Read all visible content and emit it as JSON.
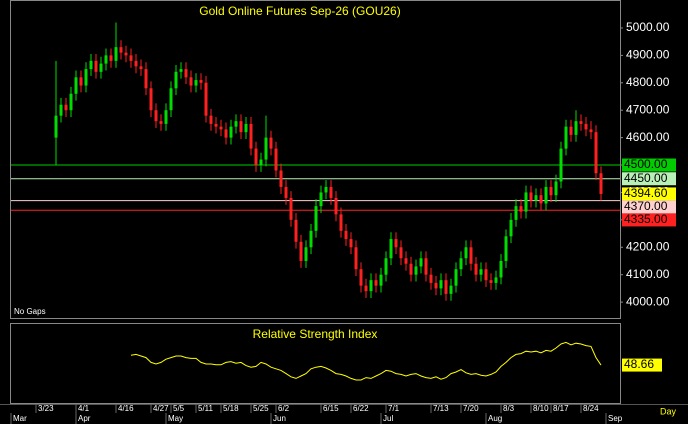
{
  "chart_data": [
    {
      "type": "candlestick",
      "title": "Gold Online Futures Sep-26 (GOU26)",
      "note": "No Gaps",
      "xlabel": "Day",
      "up_color": "#00dd00",
      "down_color": "#ff2020",
      "xlim": [
        -9.2,
        112.8
      ],
      "xticks": [
        {
          "value": -4,
          "label": "3/23"
        },
        {
          "value": 4,
          "label": "4/1"
        },
        {
          "value": 12,
          "label": "4/16"
        },
        {
          "value": 19,
          "label": "4/27"
        },
        {
          "value": 23,
          "label": "5/5"
        },
        {
          "value": 28,
          "label": "5/11"
        },
        {
          "value": 33,
          "label": "5/18"
        },
        {
          "value": 39,
          "label": "5/25"
        },
        {
          "value": 44,
          "label": "6/2"
        },
        {
          "value": 53,
          "label": "6/15"
        },
        {
          "value": 59,
          "label": "6/22"
        },
        {
          "value": 66,
          "label": "7/1"
        },
        {
          "value": 75,
          "label": "7/13"
        },
        {
          "value": 81,
          "label": "7/20"
        },
        {
          "value": 89,
          "label": "8/3"
        },
        {
          "value": 95,
          "label": "8/10"
        },
        {
          "value": 99,
          "label": "8/17"
        },
        {
          "value": 105,
          "label": "8/24"
        }
      ],
      "month_ticks": [
        {
          "value": -9,
          "label": "Mar"
        },
        {
          "value": 4,
          "label": "Apr"
        },
        {
          "value": 22,
          "label": "May"
        },
        {
          "value": 43,
          "label": "Jun"
        },
        {
          "value": 65,
          "label": "Jul"
        },
        {
          "value": 86,
          "label": "Aug"
        },
        {
          "value": 110,
          "label": "Sep"
        }
      ],
      "ylim": [
        3942,
        5102
      ],
      "yticks": [
        {
          "value": 4000,
          "label": "4000.00"
        },
        {
          "value": 4100,
          "label": "4100.00"
        },
        {
          "value": 4200,
          "label": "4200.00"
        },
        {
          "value": 4300,
          "label": "4300.00"
        },
        {
          "value": 4400,
          "label": "4400.00"
        },
        {
          "value": 4500,
          "label": "4500.00"
        },
        {
          "value": 4600,
          "label": "4600.00"
        },
        {
          "value": 4700,
          "label": "4700.00"
        },
        {
          "value": 4800,
          "label": "4800.00"
        },
        {
          "value": 4900,
          "label": "4900.00"
        },
        {
          "value": 5000,
          "label": "5000.00"
        }
      ],
      "levels": [
        {
          "value": 4500,
          "label": "4500.00",
          "color": "#00cc00",
          "text_color": "#000000"
        },
        {
          "value": 4450,
          "label": "4450.00",
          "color": "#b8f0b8",
          "text_color": "#000000"
        },
        {
          "value": 4370,
          "label": "4370.00",
          "color": "#ffd0d0",
          "text_color": "#000000"
        },
        {
          "value": 4335,
          "label": "4335.00",
          "color": "#ff2020",
          "text_color": "#000000"
        }
      ],
      "last_price": {
        "value": 4394.6,
        "label": "4394.60",
        "color": "#ffff00"
      },
      "open": [
        4600,
        4680,
        4720,
        4700,
        4760,
        4820,
        4790,
        4850,
        4880,
        4840,
        4870,
        4900,
        4880,
        4930,
        4910,
        4900,
        4880,
        4860,
        4850,
        4780,
        4700,
        4660,
        4650,
        4700,
        4780,
        4840,
        4850,
        4820,
        4790,
        4810,
        4800,
        4680,
        4650,
        4640,
        4630,
        4600,
        4640,
        4660,
        4620,
        4650,
        4560,
        4500,
        4520,
        4600,
        4560,
        4480,
        4420,
        4380,
        4300,
        4220,
        4150,
        4200,
        4260,
        4350,
        4400,
        4420,
        4380,
        4320,
        4260,
        4230,
        4200,
        4120,
        4060,
        4040,
        4080,
        4060,
        4100,
        4160,
        4230,
        4200,
        4160,
        4140,
        4100,
        4130,
        4160,
        4100,
        4070,
        4050,
        4080,
        4030,
        4060,
        4120,
        4160,
        4200,
        4140,
        4100,
        4120,
        4080,
        4070,
        4090,
        4150,
        4240,
        4300,
        4350,
        4330,
        4400,
        4370,
        4390,
        4360,
        4420,
        4390,
        4440,
        4560,
        4640,
        4610,
        4660,
        4650,
        4630,
        4620,
        4470
      ],
      "high": [
        4880,
        4745,
        4745,
        4785,
        4845,
        4845,
        4875,
        4905,
        4905,
        4895,
        4925,
        4925,
        5020,
        4955,
        4935,
        4925,
        4905,
        4885,
        4875,
        4805,
        4725,
        4685,
        4725,
        4805,
        4865,
        4875,
        4875,
        4845,
        4835,
        4835,
        4825,
        4705,
        4675,
        4665,
        4655,
        4665,
        4685,
        4685,
        4675,
        4675,
        4585,
        4545,
        4680,
        4625,
        4585,
        4505,
        4445,
        4405,
        4325,
        4245,
        4225,
        4285,
        4375,
        4425,
        4445,
        4445,
        4405,
        4345,
        4285,
        4255,
        4225,
        4145,
        4085,
        4105,
        4105,
        4125,
        4185,
        4255,
        4255,
        4225,
        4185,
        4165,
        4155,
        4185,
        4185,
        4125,
        4095,
        4105,
        4105,
        4085,
        4145,
        4185,
        4225,
        4225,
        4165,
        4145,
        4145,
        4105,
        4115,
        4175,
        4265,
        4325,
        4375,
        4375,
        4425,
        4425,
        4415,
        4415,
        4445,
        4445,
        4465,
        4585,
        4665,
        4665,
        4700,
        4685,
        4675,
        4660,
        4645,
        4495
      ],
      "low": [
        4500,
        4655,
        4675,
        4675,
        4735,
        4765,
        4765,
        4825,
        4815,
        4815,
        4845,
        4855,
        4855,
        4885,
        4875,
        4855,
        4835,
        4825,
        4755,
        4675,
        4635,
        4625,
        4625,
        4675,
        4755,
        4815,
        4795,
        4765,
        4765,
        4775,
        4655,
        4625,
        4615,
        4605,
        4575,
        4575,
        4615,
        4595,
        4595,
        4535,
        4475,
        4475,
        4495,
        4535,
        4455,
        4395,
        4355,
        4275,
        4195,
        4125,
        4125,
        4175,
        4235,
        4325,
        4375,
        4355,
        4295,
        4235,
        4205,
        4175,
        4095,
        4035,
        4015,
        4015,
        4035,
        4035,
        4075,
        4135,
        4175,
        4135,
        4115,
        4075,
        4075,
        4105,
        4075,
        4045,
        4025,
        4025,
        4005,
        4005,
        4035,
        4095,
        4135,
        4115,
        4075,
        4075,
        4055,
        4045,
        4045,
        4065,
        4125,
        4215,
        4275,
        4305,
        4305,
        4345,
        4345,
        4335,
        4335,
        4365,
        4365,
        4415,
        4535,
        4585,
        4585,
        4625,
        4605,
        4595,
        4445,
        4370
      ],
      "close": [
        4680,
        4720,
        4700,
        4760,
        4820,
        4790,
        4850,
        4880,
        4840,
        4870,
        4900,
        4880,
        4930,
        4910,
        4900,
        4880,
        4860,
        4850,
        4780,
        4700,
        4660,
        4650,
        4700,
        4780,
        4840,
        4850,
        4820,
        4790,
        4810,
        4800,
        4680,
        4650,
        4640,
        4630,
        4600,
        4640,
        4660,
        4620,
        4650,
        4560,
        4500,
        4520,
        4600,
        4560,
        4480,
        4420,
        4380,
        4300,
        4220,
        4150,
        4200,
        4260,
        4350,
        4400,
        4420,
        4380,
        4320,
        4260,
        4230,
        4200,
        4120,
        4060,
        4040,
        4080,
        4060,
        4100,
        4160,
        4230,
        4200,
        4160,
        4140,
        4100,
        4130,
        4160,
        4100,
        4070,
        4050,
        4080,
        4030,
        4060,
        4120,
        4160,
        4200,
        4140,
        4100,
        4120,
        4080,
        4070,
        4090,
        4150,
        4240,
        4300,
        4350,
        4330,
        4400,
        4370,
        4390,
        4360,
        4420,
        4390,
        4440,
        4560,
        4640,
        4610,
        4660,
        4650,
        4630,
        4620,
        4470,
        4394.6
      ]
    },
    {
      "type": "line",
      "title": "Relative Strength Index",
      "color": "#ffff00",
      "ylim": [
        0,
        100
      ],
      "xlim": [
        -9.2,
        112.8
      ],
      "values": [
        null,
        null,
        null,
        null,
        null,
        null,
        null,
        null,
        null,
        null,
        null,
        null,
        null,
        null,
        null,
        61,
        62,
        60,
        58,
        52,
        50,
        52,
        56,
        58,
        60,
        60,
        58,
        57,
        57,
        52,
        50,
        50,
        49,
        49,
        52,
        53,
        51,
        52,
        48,
        46,
        47,
        52,
        50,
        46,
        44,
        42,
        38,
        34,
        32,
        35,
        38,
        44,
        46,
        47,
        45,
        42,
        38,
        37,
        35,
        32,
        30,
        30,
        33,
        32,
        35,
        38,
        42,
        41,
        38,
        37,
        35,
        37,
        38,
        35,
        33,
        32,
        34,
        31,
        33,
        38,
        40,
        43,
        39,
        37,
        38,
        36,
        35,
        37,
        40,
        47,
        52,
        58,
        62,
        63,
        66,
        65,
        66,
        64,
        67,
        66,
        70,
        75,
        77,
        74,
        76,
        75,
        73,
        72,
        58,
        48.66
      ]
    }
  ]
}
